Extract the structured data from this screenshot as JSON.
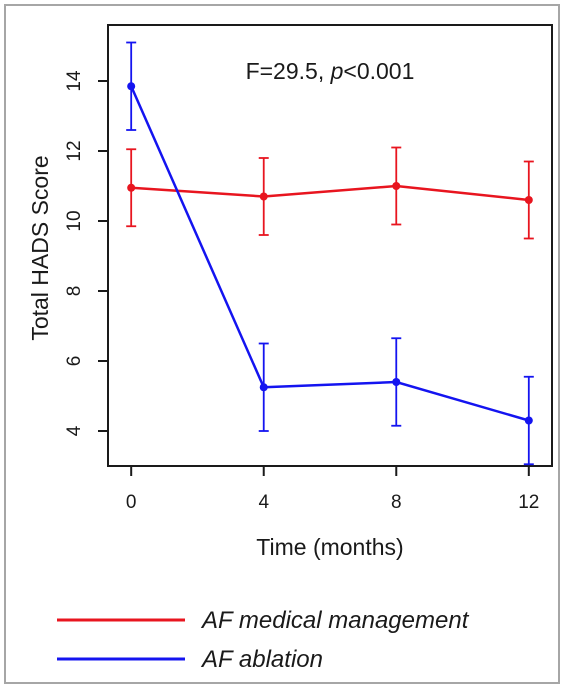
{
  "chart_data": {
    "type": "line",
    "title": "",
    "xlabel": "Time (months)",
    "ylabel": "Total HADS Score",
    "x": [
      0,
      4,
      8,
      12
    ],
    "xlim": [
      -0.7,
      12.7
    ],
    "ylim": [
      3.0,
      15.6
    ],
    "xticks": [
      0,
      4,
      8,
      12
    ],
    "yticks": [
      4,
      6,
      8,
      10,
      12,
      14
    ],
    "grid": false,
    "legend": "bottom",
    "annotation": {
      "prefix": "F=29.5, ",
      "italic": "p",
      "suffix": "<0.001"
    },
    "series": [
      {
        "name": "AF medical management",
        "color": "#e8151f",
        "values": [
          10.95,
          10.7,
          11.0,
          10.6
        ],
        "err_low": [
          9.85,
          9.6,
          9.9,
          9.5
        ],
        "err_high": [
          12.05,
          11.8,
          12.1,
          11.7
        ]
      },
      {
        "name": "AF ablation",
        "color": "#1414f0",
        "values": [
          13.85,
          5.25,
          5.4,
          4.3
        ],
        "err_low": [
          12.6,
          4.0,
          4.15,
          3.05
        ],
        "err_high": [
          15.1,
          6.5,
          6.65,
          5.55
        ]
      }
    ]
  }
}
